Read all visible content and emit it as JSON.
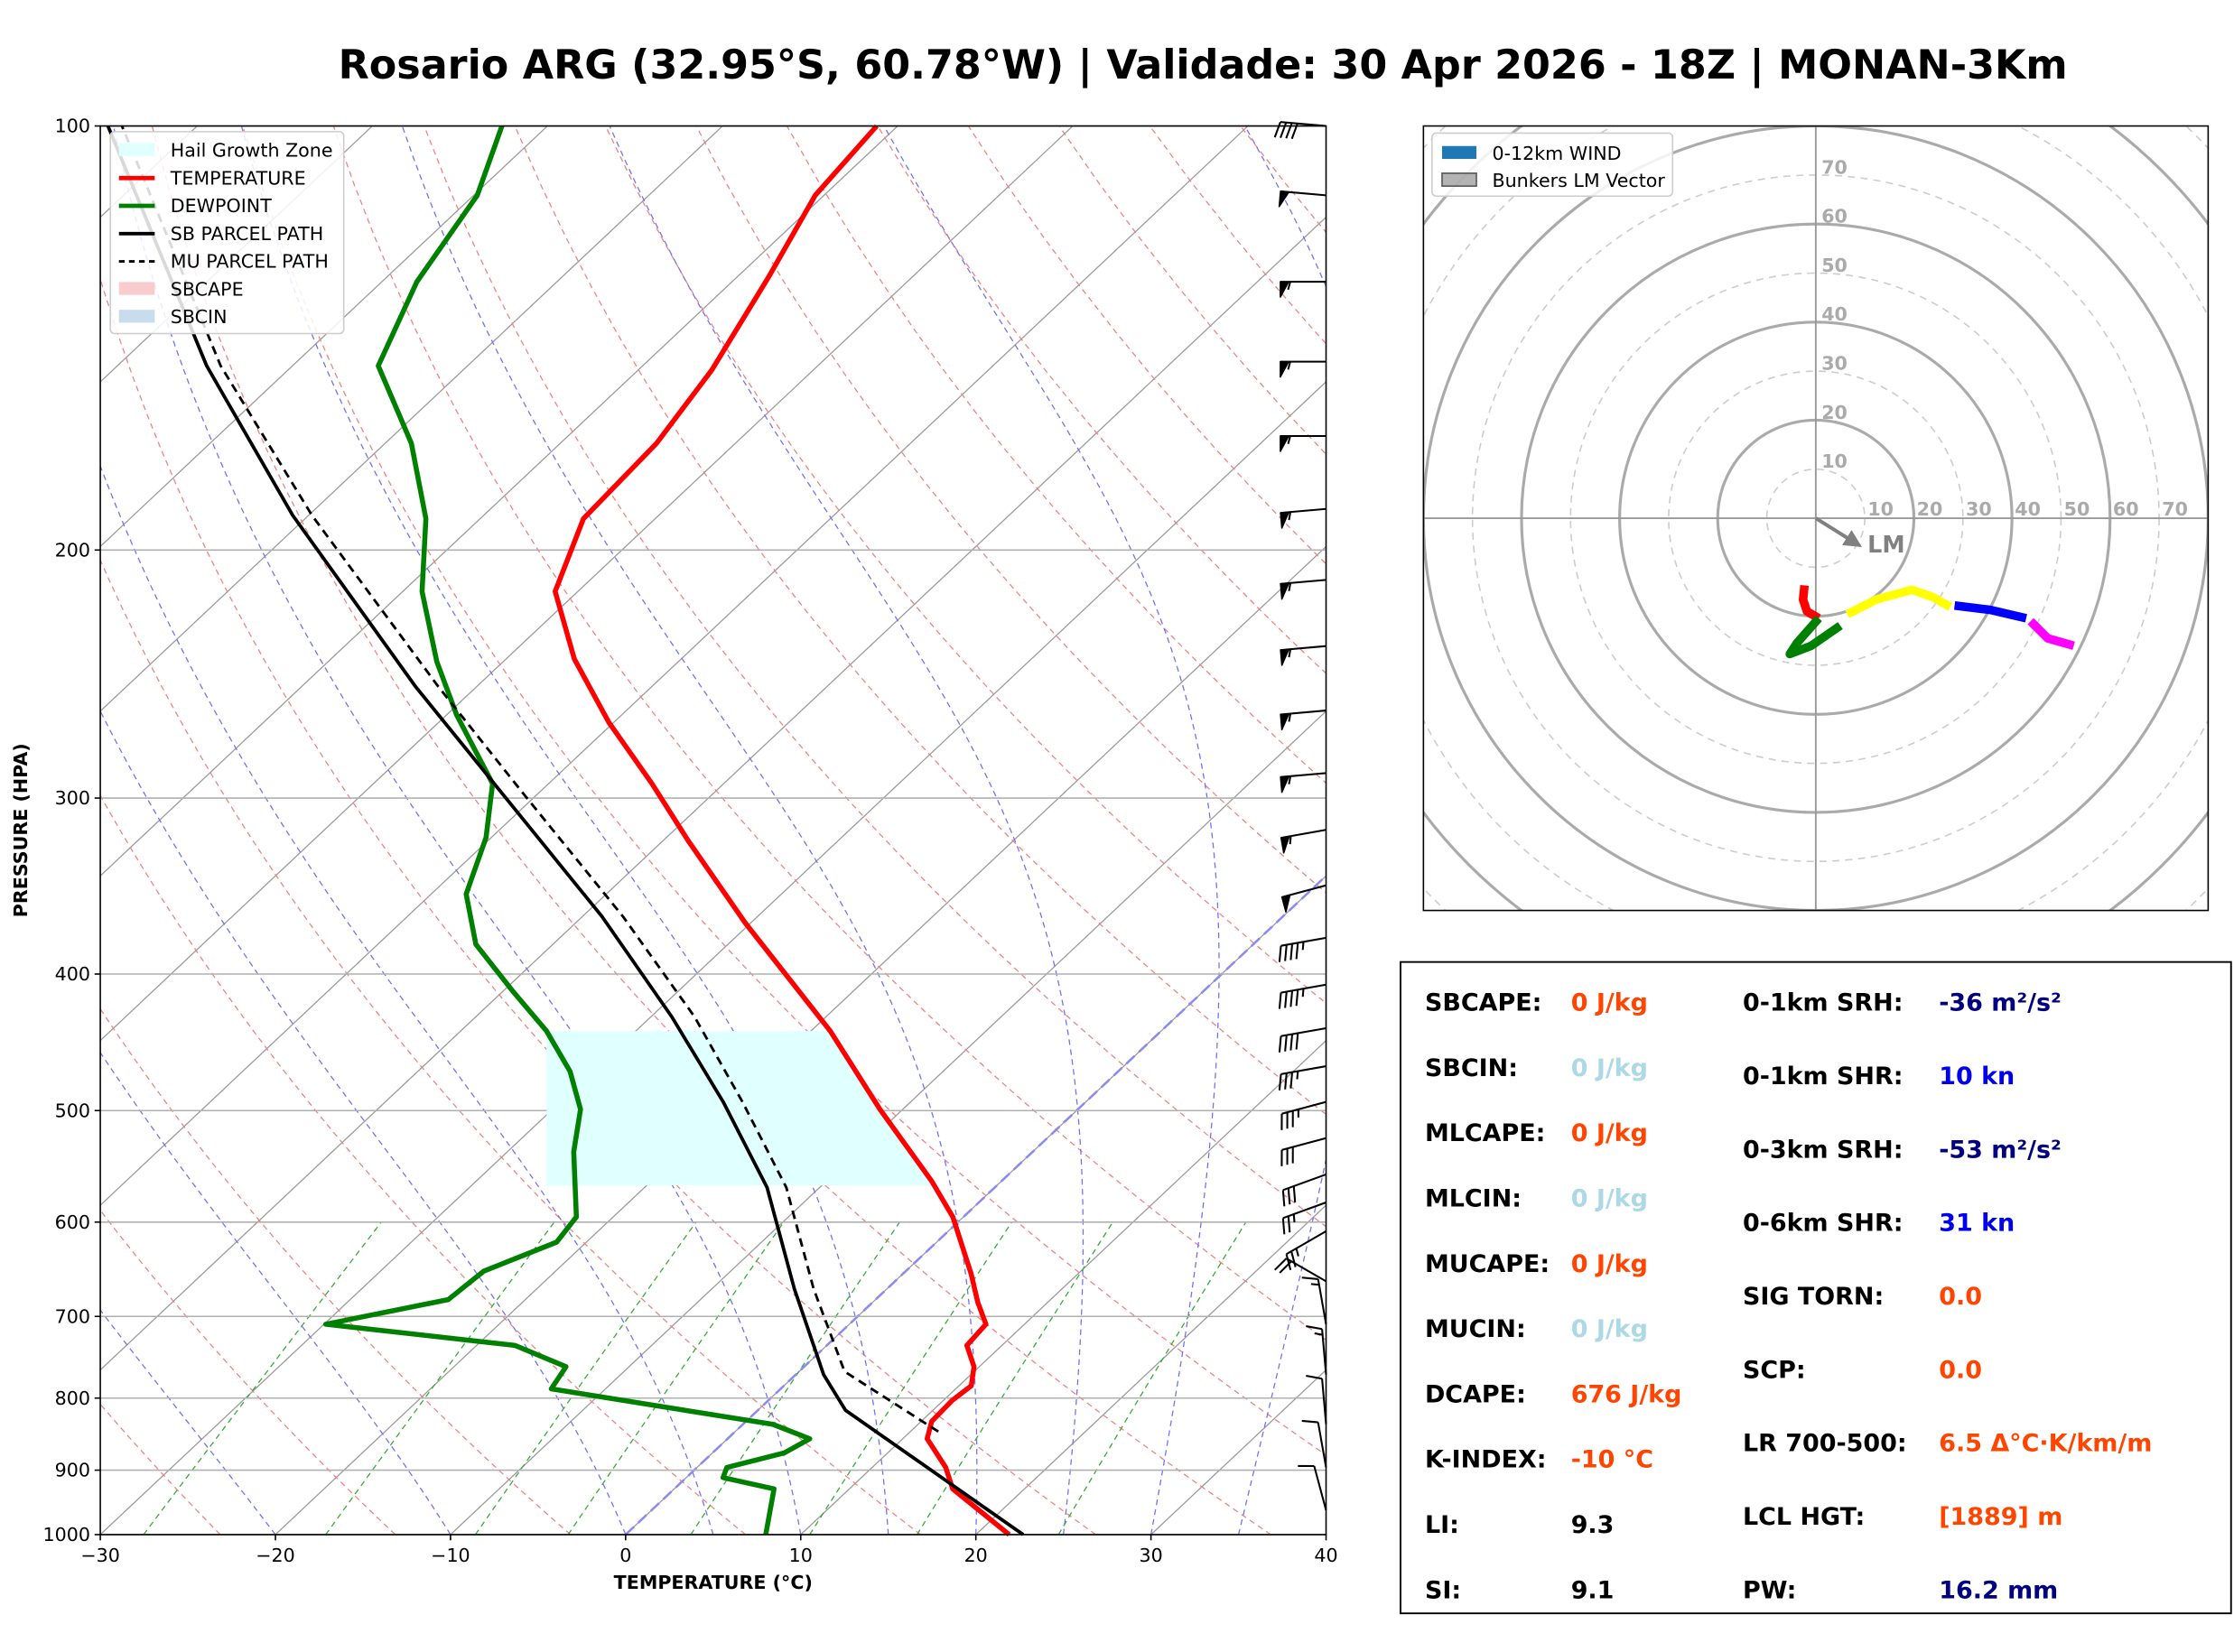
{
  "chart_data": [
    {
      "type": "skewt",
      "title": "Rosario ARG (32.95°S, 60.78°W) | Validade: 30 Apr 2026 - 18Z | MONAN-3Km",
      "x_label": "TEMPERATURE (°C)",
      "y_label": "PRESSURE (HPA)",
      "xlim": [
        -30,
        40
      ],
      "xticks": [
        {
          "value": -30,
          "label": "−30"
        },
        {
          "value": -20,
          "label": "−20"
        },
        {
          "value": -10,
          "label": "−10"
        },
        0,
        10,
        20,
        30,
        40
      ],
      "ylim": [
        1000,
        100
      ],
      "yticks": [
        100,
        200,
        300,
        400,
        500,
        600,
        700,
        800,
        900,
        1000
      ],
      "log_y": true,
      "legend_position": "upper left",
      "areas": [
        {
          "name": "Hail Growth Zone",
          "color": "#e0ffff",
          "pressure_range": [
            565,
            439
          ]
        },
        {
          "name": "SBCAPE",
          "color": "#f8cccc"
        },
        {
          "name": "SBCIN",
          "color": "#c9dcee"
        }
      ],
      "series": [
        {
          "name": "TEMPERATURE",
          "color": "#ff0000",
          "style": "solid",
          "linewidth": 3.5,
          "pressure": [
            1000,
            928,
            896,
            855,
            831,
            803,
            784,
            760,
            734,
            709,
            684,
            653,
            595,
            561,
            499,
            439,
            368,
            322,
            293,
            265,
            239,
            214,
            190,
            168,
            149,
            128,
            112,
            100
          ],
          "values": [
            21.9,
            15.9,
            14.2,
            11.4,
            10.6,
            10.5,
            10.7,
            9.7,
            8.0,
            7.8,
            6.0,
            3.9,
            -0.6,
            -4.0,
            -11.3,
            -18.9,
            -30.3,
            -38.5,
            -44.1,
            -50.3,
            -56.1,
            -61.3,
            -64.1,
            -64.5,
            -65.8,
            -68.2,
            -70.5,
            -71.2
          ]
        },
        {
          "name": "DEWPOINT",
          "color": "#008000",
          "style": "solid",
          "linewidth": 3.5,
          "pressure": [
            1000,
            928,
            911,
            896,
            875,
            855,
            835,
            788,
            760,
            734,
            709,
            681,
            650,
            620,
            595,
            535,
            499,
            469,
            439,
            411,
            381,
            351,
            320,
            293,
            262,
            240,
            214,
            190,
            168,
            148,
            129,
            112,
            100
          ],
          "values": [
            8.0,
            5.7,
            2.1,
            1.7,
            4.1,
            4.7,
            1.7,
            -13.1,
            -13.6,
            -17.8,
            -29.9,
            -24.4,
            -24.1,
            -21.7,
            -22.1,
            -26.2,
            -28.4,
            -31.3,
            -35.1,
            -39.5,
            -44.4,
            -48.0,
            -50.3,
            -53.2,
            -59.4,
            -63.8,
            -68.9,
            -73.1,
            -78.5,
            -85.1,
            -88.0,
            -89.8,
            -92.6
          ]
        },
        {
          "name": "SB PARCEL PATH",
          "color": "#000000",
          "style": "solid",
          "linewidth": 2.4,
          "pressure": [
            1000,
            816,
            770,
            669,
            567,
            493,
            429,
            364,
            298,
            250,
            189,
            148,
            100
          ],
          "values": [
            22.7,
            5.0,
            1.6,
            -5.3,
            -13.0,
            -20.7,
            -28.8,
            -38.9,
            -52.0,
            -63.5,
            -80.9,
            -94.9,
            -115.1
          ]
        },
        {
          "name": "MU PARCEL PATH",
          "color": "#000000",
          "style": "dashed",
          "linewidth": 1.8,
          "pressure": [
            845,
            766,
            669,
            567,
            493,
            429,
            364,
            298,
            250,
            189,
            148,
            100
          ],
          "values": [
            11.6,
            2.6,
            -4.2,
            -11.9,
            -19.6,
            -27.5,
            -37.7,
            -50.8,
            -62.2,
            -79.8,
            -94.1,
            -114.3
          ]
        }
      ],
      "wind": {
        "pressure": [
          100,
          112,
          129,
          147,
          166,
          187,
          210,
          234,
          260,
          288,
          316,
          346,
          377,
          407,
          437,
          465,
          493,
          523,
          555,
          581,
          609,
          661,
          709,
          770,
          835,
          896,
          961
        ],
        "speed": [
          40,
          50,
          55,
          55,
          55,
          55,
          55,
          55,
          55,
          55,
          55,
          50,
          45,
          45,
          40,
          35,
          35,
          30,
          30,
          25,
          25,
          20,
          15,
          15,
          10,
          10,
          10
        ],
        "direction": [
          275,
          275,
          270,
          270,
          270,
          265,
          265,
          265,
          265,
          265,
          260,
          255,
          260,
          260,
          260,
          260,
          255,
          255,
          250,
          250,
          240,
          300,
          350,
          355,
          355,
          350,
          345
        ]
      }
    },
    {
      "type": "hodograph",
      "lim": 80,
      "ticks": [
        10,
        20,
        30,
        40,
        50,
        60,
        70
      ],
      "legend_position": "upper left",
      "series": [
        {
          "name": "0-12km WIND",
          "color": "#1f77b4"
        }
      ],
      "segments": [
        {
          "color": "#ff0000",
          "u": [
            -2.3,
            -2.6,
            -1.8,
            0.6
          ],
          "v": [
            -13.7,
            -16.6,
            -19.0,
            -20.4
          ]
        },
        {
          "color": "#008000",
          "u": [
            0.6,
            -3.8,
            -5.3,
            -0.9,
            5.0
          ],
          "v": [
            -20.4,
            -25.4,
            -27.7,
            -26.0,
            -21.9
          ]
        },
        {
          "color": "#ffff00",
          "u": [
            6.4,
            12.3,
            19.6,
            23.9,
            27.4
          ],
          "v": [
            -19.6,
            -16.6,
            -14.6,
            -16.1,
            -18.1
          ]
        },
        {
          "color": "#0000ff",
          "u": [
            28.3,
            35.6,
            42.9
          ],
          "v": [
            -17.8,
            -18.7,
            -20.4
          ]
        },
        {
          "color": "#ff00ff",
          "u": [
            43.8,
            47.3,
            52.6
          ],
          "v": [
            -21.0,
            -24.5,
            -26.0
          ]
        }
      ],
      "storm_motion": {
        "name": "Bunkers LM Vector",
        "label": "LM",
        "color": "#808080",
        "u": 8.8,
        "v": -5.5
      }
    }
  ],
  "stats_panel": {
    "left": [
      {
        "label": "SBCAPE:",
        "value": "0 J/kg",
        "color": "#ff4500"
      },
      {
        "label": "SBCIN:",
        "value": "0 J/kg",
        "color": "#add8e6"
      },
      {
        "label": "MLCAPE:",
        "value": "0 J/kg",
        "color": "#ff4500"
      },
      {
        "label": "MLCIN:",
        "value": "0 J/kg",
        "color": "#add8e6"
      },
      {
        "label": "MUCAPE:",
        "value": "0 J/kg",
        "color": "#ff4500"
      },
      {
        "label": "MUCIN:",
        "value": "0 J/kg",
        "color": "#add8e6"
      },
      {
        "label": "DCAPE:",
        "value": "676 J/kg",
        "color": "#ff4500"
      },
      {
        "label": "K-INDEX:",
        "value": "-10 °C",
        "color": "#ff4500"
      },
      {
        "label": "LI:",
        "value": "9.3",
        "color": "#000000"
      },
      {
        "label": "SI:",
        "value": "9.1",
        "color": "#000000"
      }
    ],
    "right": [
      {
        "label": "0-1km SRH:",
        "value": "-36 m²/s²",
        "color": "#000080"
      },
      {
        "label": "0-1km SHR:",
        "value": "10 kn",
        "color": "#0000ee"
      },
      {
        "label": "0-3km SRH:",
        "value": "-53 m²/s²",
        "color": "#000080"
      },
      {
        "label": "0-6km SHR:",
        "value": "31 kn",
        "color": "#0000ee"
      },
      {
        "label": "SIG TORN:",
        "value": "0.0",
        "color": "#ff4500"
      },
      {
        "label": "SCP:",
        "value": "0.0",
        "color": "#ff4500"
      },
      {
        "label": "LR 700-500:",
        "value": "6.5 Δ°C·K/km/m",
        "color": "#ff4500"
      },
      {
        "label": "LCL HGT:",
        "value": "[1889] m",
        "color": "#ff4500"
      },
      {
        "label": "PW:",
        "value": "16.2 mm",
        "color": "#000080"
      }
    ]
  }
}
